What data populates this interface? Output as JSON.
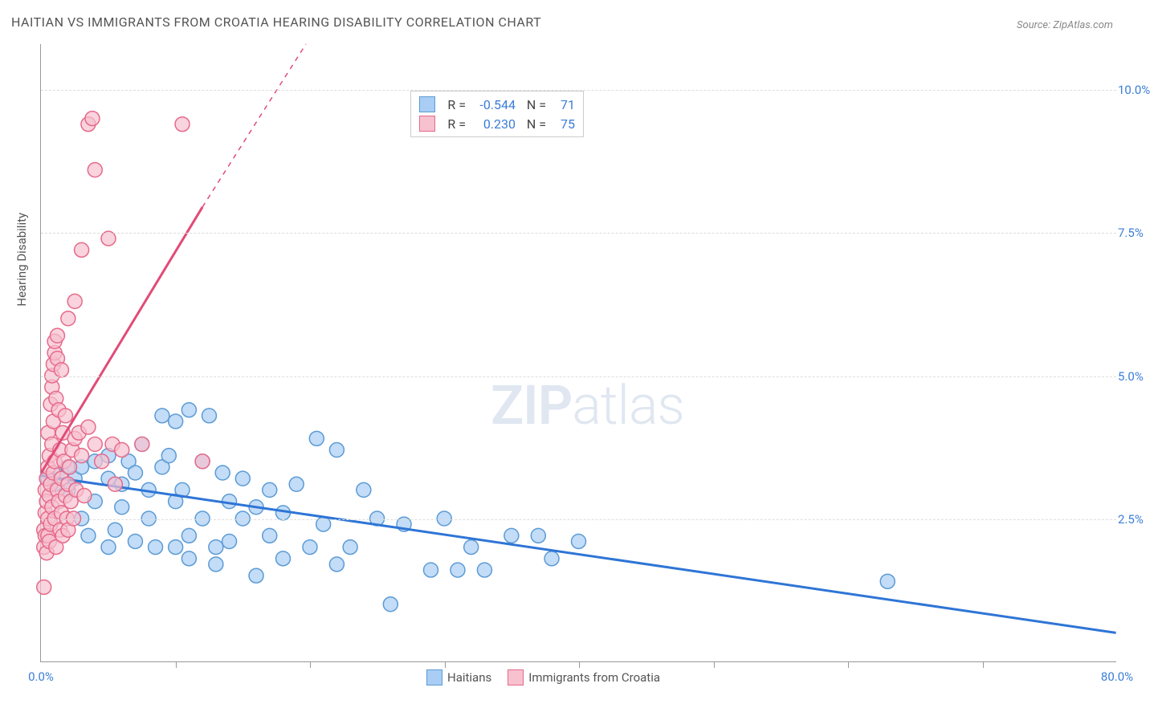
{
  "title": "HAITIAN VS IMMIGRANTS FROM CROATIA HEARING DISABILITY CORRELATION CHART",
  "source": "Source: ZipAtlas.com",
  "ylabel": "Hearing Disability",
  "watermark_bold": "ZIP",
  "watermark_light": "atlas",
  "chart": {
    "type": "scatter",
    "xlim": [
      0,
      80
    ],
    "ylim": [
      0,
      10.8
    ],
    "xticks_labeled": [
      {
        "v": 0,
        "label": "0.0%"
      },
      {
        "v": 80,
        "label": "80.0%"
      }
    ],
    "xticks_minor": [
      10,
      20,
      30,
      40,
      50,
      60,
      70
    ],
    "yticks": [
      {
        "v": 2.5,
        "label": "2.5%"
      },
      {
        "v": 5.0,
        "label": "5.0%"
      },
      {
        "v": 7.5,
        "label": "7.5%"
      },
      {
        "v": 10.0,
        "label": "10.0%"
      }
    ],
    "grid_color": "#dddddd",
    "background_color": "#ffffff",
    "axis_label_color": "#3b7dd8",
    "series": [
      {
        "name": "Haitians",
        "marker_color_fill": "#a9cdf4",
        "marker_color_stroke": "#5b9bd5",
        "marker_opacity": 0.7,
        "marker_radius": 9,
        "trend_color": "#2e75d6",
        "trend_width": 3,
        "trend": {
          "x1": 0,
          "y1": 3.25,
          "x2": 80,
          "y2": 0.5
        },
        "R": "-0.544",
        "N": "71",
        "points": [
          [
            0.5,
            3.2
          ],
          [
            1,
            3.1
          ],
          [
            1.5,
            3.3
          ],
          [
            2,
            3.0
          ],
          [
            2,
            3.4
          ],
          [
            2.5,
            3.2
          ],
          [
            3,
            2.5
          ],
          [
            3,
            3.4
          ],
          [
            3.5,
            2.2
          ],
          [
            4,
            3.5
          ],
          [
            4,
            2.8
          ],
          [
            5,
            2.0
          ],
          [
            5,
            3.2
          ],
          [
            5,
            3.6
          ],
          [
            5.5,
            2.3
          ],
          [
            6,
            3.1
          ],
          [
            6,
            2.7
          ],
          [
            6.5,
            3.5
          ],
          [
            7,
            3.3
          ],
          [
            7,
            2.1
          ],
          [
            7.5,
            3.8
          ],
          [
            8,
            2.5
          ],
          [
            8,
            3.0
          ],
          [
            8.5,
            2.0
          ],
          [
            9,
            4.3
          ],
          [
            9,
            3.4
          ],
          [
            9.5,
            3.6
          ],
          [
            10,
            2.8
          ],
          [
            10,
            2.0
          ],
          [
            10,
            4.2
          ],
          [
            10.5,
            3.0
          ],
          [
            11,
            1.8
          ],
          [
            11,
            2.2
          ],
          [
            11,
            4.4
          ],
          [
            12,
            3.5
          ],
          [
            12,
            2.5
          ],
          [
            12.5,
            4.3
          ],
          [
            13,
            2.0
          ],
          [
            13,
            1.7
          ],
          [
            13.5,
            3.3
          ],
          [
            14,
            2.8
          ],
          [
            14,
            2.1
          ],
          [
            15,
            3.2
          ],
          [
            15,
            2.5
          ],
          [
            16,
            1.5
          ],
          [
            16,
            2.7
          ],
          [
            17,
            3.0
          ],
          [
            17,
            2.2
          ],
          [
            18,
            2.6
          ],
          [
            18,
            1.8
          ],
          [
            19,
            3.1
          ],
          [
            20,
            2.0
          ],
          [
            20.5,
            3.9
          ],
          [
            21,
            2.4
          ],
          [
            22,
            3.7
          ],
          [
            22,
            1.7
          ],
          [
            23,
            2.0
          ],
          [
            24,
            3.0
          ],
          [
            25,
            2.5
          ],
          [
            26,
            1.0
          ],
          [
            27,
            2.4
          ],
          [
            29,
            1.6
          ],
          [
            30,
            2.5
          ],
          [
            31,
            1.6
          ],
          [
            32,
            2.0
          ],
          [
            33,
            1.6
          ],
          [
            35,
            2.2
          ],
          [
            37,
            2.2
          ],
          [
            38,
            1.8
          ],
          [
            40,
            2.1
          ],
          [
            63,
            1.4
          ]
        ]
      },
      {
        "name": "Immigrants from Croatia",
        "marker_color_fill": "#f7c1cf",
        "marker_color_stroke": "#e66a8a",
        "marker_opacity": 0.7,
        "marker_radius": 9,
        "trend_color": "#e14b78",
        "trend_width": 3,
        "trend_solid": {
          "x1": 0,
          "y1": 3.3,
          "x2": 12,
          "y2": 7.95
        },
        "trend_dash": {
          "x1": 12,
          "y1": 7.95,
          "x2": 19.7,
          "y2": 10.8
        },
        "R": "0.230",
        "N": "75",
        "points": [
          [
            0.2,
            1.3
          ],
          [
            0.2,
            2.0
          ],
          [
            0.2,
            2.3
          ],
          [
            0.3,
            2.6
          ],
          [
            0.3,
            2.2
          ],
          [
            0.3,
            3.0
          ],
          [
            0.4,
            1.9
          ],
          [
            0.4,
            2.8
          ],
          [
            0.4,
            3.2
          ],
          [
            0.5,
            2.2
          ],
          [
            0.5,
            2.5
          ],
          [
            0.5,
            3.4
          ],
          [
            0.5,
            4.0
          ],
          [
            0.6,
            3.6
          ],
          [
            0.6,
            2.1
          ],
          [
            0.6,
            2.9
          ],
          [
            0.7,
            4.5
          ],
          [
            0.7,
            3.1
          ],
          [
            0.7,
            2.4
          ],
          [
            0.8,
            4.8
          ],
          [
            0.8,
            5.0
          ],
          [
            0.8,
            3.8
          ],
          [
            0.8,
            2.7
          ],
          [
            0.9,
            5.2
          ],
          [
            0.9,
            4.2
          ],
          [
            0.9,
            3.3
          ],
          [
            1.0,
            5.4
          ],
          [
            1.0,
            5.6
          ],
          [
            1.0,
            2.5
          ],
          [
            1.0,
            3.5
          ],
          [
            1.1,
            4.6
          ],
          [
            1.1,
            2.0
          ],
          [
            1.2,
            5.7
          ],
          [
            1.2,
            3.0
          ],
          [
            1.2,
            5.3
          ],
          [
            1.3,
            2.8
          ],
          [
            1.3,
            4.4
          ],
          [
            1.4,
            2.3
          ],
          [
            1.4,
            3.7
          ],
          [
            1.5,
            2.6
          ],
          [
            1.5,
            5.1
          ],
          [
            1.5,
            3.2
          ],
          [
            1.6,
            4.0
          ],
          [
            1.6,
            2.2
          ],
          [
            1.7,
            3.5
          ],
          [
            1.8,
            2.9
          ],
          [
            1.8,
            4.3
          ],
          [
            1.9,
            2.5
          ],
          [
            2.0,
            3.1
          ],
          [
            2.0,
            2.3
          ],
          [
            2.0,
            6.0
          ],
          [
            2.1,
            3.4
          ],
          [
            2.2,
            2.8
          ],
          [
            2.3,
            3.7
          ],
          [
            2.4,
            2.5
          ],
          [
            2.5,
            3.9
          ],
          [
            2.5,
            6.3
          ],
          [
            2.6,
            3.0
          ],
          [
            2.8,
            4.0
          ],
          [
            3.0,
            3.6
          ],
          [
            3.0,
            7.2
          ],
          [
            3.2,
            2.9
          ],
          [
            3.5,
            9.4
          ],
          [
            3.5,
            4.1
          ],
          [
            3.8,
            9.5
          ],
          [
            4.0,
            3.8
          ],
          [
            4.0,
            8.6
          ],
          [
            4.5,
            3.5
          ],
          [
            5.0,
            7.4
          ],
          [
            5.3,
            3.8
          ],
          [
            5.5,
            3.1
          ],
          [
            6.0,
            3.7
          ],
          [
            7.5,
            3.8
          ],
          [
            10.5,
            9.4
          ],
          [
            12,
            3.5
          ]
        ]
      }
    ]
  },
  "legend": {
    "series1_label": "Haitians",
    "series2_label": "Immigrants from Croatia"
  },
  "stats": {
    "r_label": "R =",
    "n_label": "N ="
  }
}
